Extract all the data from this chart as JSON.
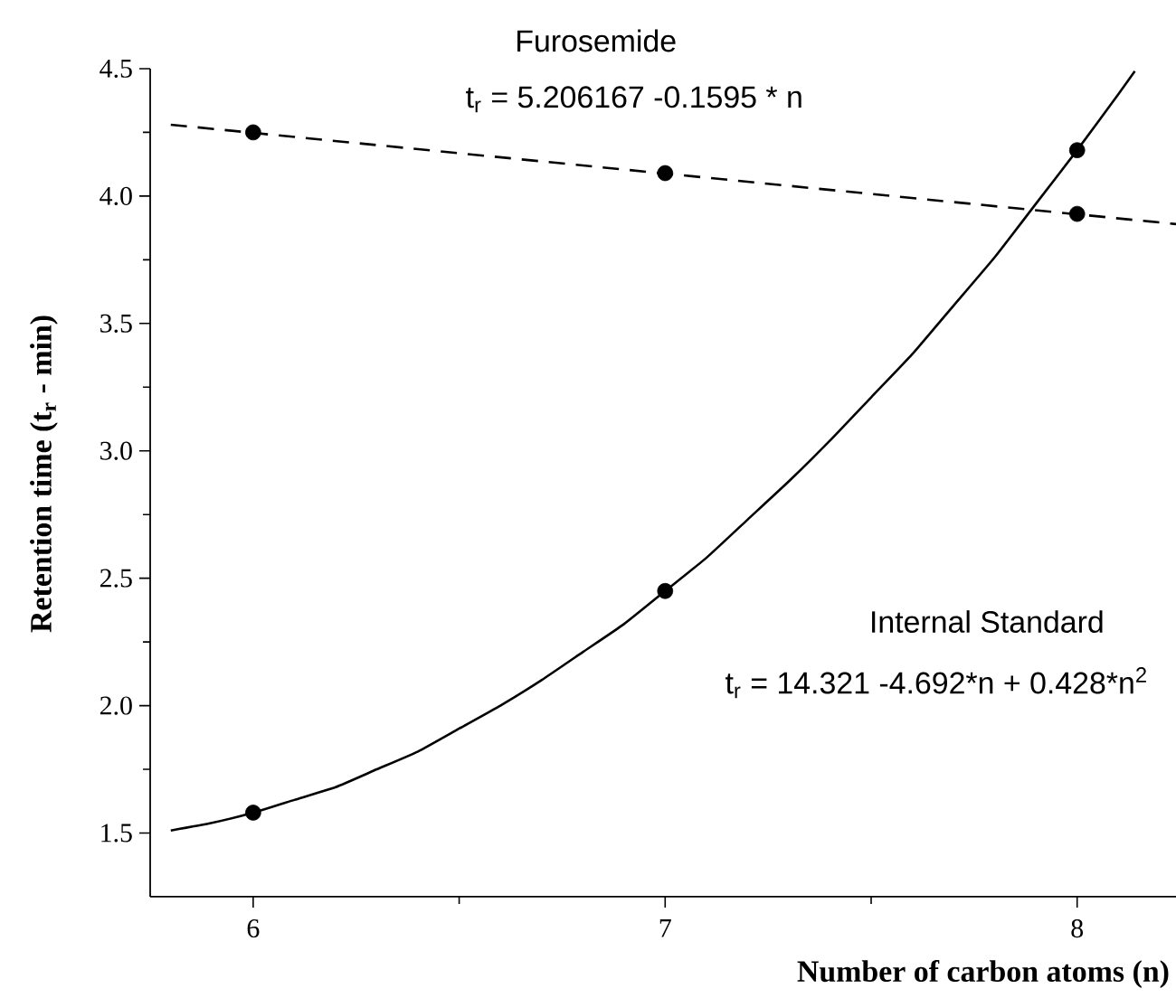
{
  "chart_data": {
    "type": "scatter",
    "xlabel": "Number of carbon atoms (n)",
    "ylabel": "Retention time (t$_{r}$ - min)",
    "xlim": [
      5.75,
      8.24
    ],
    "xticks": [
      6,
      7,
      8
    ],
    "ylim": [
      1.25,
      4.5
    ],
    "yticks": [
      1.5,
      {
        "value": 2,
        "label": "2.0"
      },
      2.5,
      {
        "value": 3,
        "label": "3.0"
      },
      3.5,
      {
        "value": 4,
        "label": "4.0"
      },
      4.5
    ],
    "grid": false,
    "series": [
      {
        "color": "#000000",
        "marker": "circle",
        "x": [
          6,
          7,
          8
        ],
        "values": [
          4.25,
          4.09,
          3.93
        ]
      },
      {
        "type": "line",
        "color": "#000000",
        "marker": "none",
        "line_style": "dashed",
        "x": [
          5.8,
          8.24
        ],
        "values": [
          4.28,
          3.89
        ]
      },
      {
        "color": "#000000",
        "marker": "circle",
        "x": [
          6,
          7,
          8
        ],
        "values": [
          1.58,
          2.45,
          4.18
        ]
      },
      {
        "type": "line",
        "color": "#000000",
        "marker": "none",
        "line_style": "solid",
        "x": [
          5.8,
          5.9,
          6.0,
          6.1,
          6.2,
          6.3,
          6.4,
          6.5,
          6.6,
          6.7,
          6.8,
          6.9,
          7.0,
          7.1,
          7.2,
          7.3,
          7.4,
          7.5,
          7.6,
          7.7,
          7.8,
          7.9,
          8.0,
          8.1,
          8.14
        ],
        "values": [
          1.51,
          1.54,
          1.58,
          1.63,
          1.68,
          1.75,
          1.82,
          1.91,
          2.0,
          2.1,
          2.21,
          2.32,
          2.45,
          2.58,
          2.73,
          2.88,
          3.04,
          3.21,
          3.38,
          3.57,
          3.76,
          3.97,
          4.18,
          4.4,
          4.49
        ]
      }
    ],
    "annotations": [
      "Furosemide",
      "t$_{r}$ = 5.206167 -0.1595 * n",
      "Internal Standard",
      "t$_{r}$ = 14.321 -4.692*n + 0.428*n$^{2}$"
    ]
  }
}
